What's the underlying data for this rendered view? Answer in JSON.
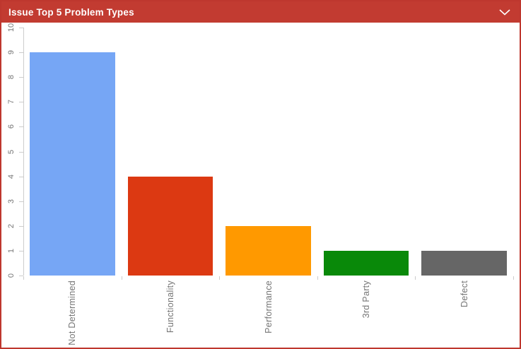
{
  "widget": {
    "title": "Issue Top 5 Problem Types",
    "header_bg": "#C23B31",
    "border_color": "#BE372E",
    "title_color": "#FFFFFF",
    "chevron_icon": "chevron-down"
  },
  "chart_data": {
    "type": "bar",
    "title": "Issue Top 5 Problem Types",
    "categories": [
      "Not Determined",
      "Functionality",
      "Performance",
      "3rd Party",
      "Defect"
    ],
    "values": [
      9,
      4,
      2,
      1,
      1
    ],
    "bar_colors": [
      "#76A6F5",
      "#DC3912",
      "#FF9900",
      "#098909",
      "#666666"
    ],
    "xlabel": "",
    "ylabel": "",
    "ylim": [
      0,
      10
    ],
    "y_ticks": [
      0,
      1,
      2,
      3,
      4,
      5,
      6,
      7,
      8,
      9,
      10
    ],
    "grid": false,
    "legend_position": "none",
    "axis_color": "#CCCCCC",
    "label_color": "#757575",
    "x_label_rotation": -90,
    "y_label_rotation": -90
  }
}
